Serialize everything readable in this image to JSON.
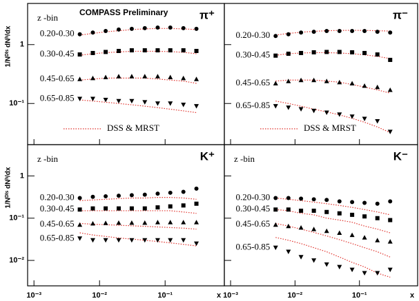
{
  "chart_data": [
    {
      "type": "scatter",
      "title": "π⁺",
      "annotation": "COMPASS Preliminary",
      "bin_label": "z -bin",
      "ylabel": "1/Nᴰᴵˢ dNʰ/dx",
      "log_x": true,
      "log_y": true,
      "xlim": [
        0.0008,
        0.8
      ],
      "ylim": [
        0.02,
        5
      ],
      "yticks": [
        1,
        {
          "value": 0.1,
          "label": "10⁻¹"
        }
      ],
      "x": [
        0.005,
        0.0079,
        0.0124,
        0.0196,
        0.031,
        0.049,
        0.077,
        0.12,
        0.19,
        0.3
      ],
      "series": [
        {
          "name": "0.20-0.30",
          "marker": "circle",
          "color": "#000000",
          "values": [
            1.5,
            1.6,
            1.7,
            1.8,
            1.85,
            1.9,
            1.95,
            1.95,
            1.9,
            1.85
          ]
        },
        {
          "name": "0.30-0.45",
          "marker": "square",
          "color": "#000000",
          "values": [
            0.68,
            0.72,
            0.75,
            0.78,
            0.8,
            0.8,
            0.8,
            0.8,
            0.8,
            0.78
          ]
        },
        {
          "name": "0.45-0.65",
          "marker": "triangle",
          "color": "#000000",
          "values": [
            0.26,
            0.27,
            0.28,
            0.29,
            0.29,
            0.29,
            0.29,
            0.28,
            0.27,
            0.26
          ]
        },
        {
          "name": "0.65-0.85",
          "marker": "down-triangle",
          "color": "#000000",
          "values": [
            0.12,
            0.12,
            0.115,
            0.11,
            0.11,
            0.105,
            0.1,
            0.1,
            0.095,
            0.09
          ]
        }
      ],
      "curve_label": "DSS & MRST",
      "curves": [
        {
          "color": "#e0302a",
          "values": [
            1.45,
            1.55,
            1.65,
            1.72,
            1.8,
            1.85,
            1.88,
            1.88,
            1.85,
            1.8
          ]
        },
        {
          "color": "#e0302a",
          "values": [
            0.66,
            0.7,
            0.73,
            0.75,
            0.77,
            0.77,
            0.77,
            0.76,
            0.74,
            0.7
          ]
        },
        {
          "color": "#e0302a",
          "values": [
            0.25,
            0.26,
            0.27,
            0.27,
            0.27,
            0.27,
            0.26,
            0.25,
            0.24,
            0.22
          ]
        },
        {
          "color": "#e0302a",
          "values": [
            0.115,
            0.11,
            0.105,
            0.1,
            0.095,
            0.09,
            0.085,
            0.08,
            0.075,
            0.07
          ]
        }
      ]
    },
    {
      "type": "scatter",
      "title": "π⁻",
      "log_x": true,
      "log_y": true,
      "xlim": [
        0.0008,
        0.8
      ],
      "ylim": [
        0.02,
        5
      ],
      "x": [
        0.005,
        0.0079,
        0.0124,
        0.0196,
        0.031,
        0.049,
        0.077,
        0.12,
        0.19,
        0.3
      ],
      "series": [
        {
          "name": "0.20-0.30",
          "marker": "circle",
          "color": "#000000",
          "values": [
            1.4,
            1.5,
            1.6,
            1.65,
            1.7,
            1.7,
            1.7,
            1.7,
            1.65,
            1.6
          ]
        },
        {
          "name": "0.30-0.45",
          "marker": "square",
          "color": "#000000",
          "values": [
            0.65,
            0.7,
            0.72,
            0.74,
            0.75,
            0.75,
            0.74,
            0.72,
            0.68,
            0.55
          ]
        },
        {
          "name": "0.45-0.65",
          "marker": "triangle",
          "color": "#000000",
          "values": [
            0.22,
            0.24,
            0.25,
            0.25,
            0.24,
            0.23,
            0.22,
            0.2,
            0.19,
            0.17
          ]
        },
        {
          "name": "0.65-0.85",
          "marker": "down-triangle",
          "color": "#000000",
          "values": [
            0.09,
            0.085,
            0.08,
            0.075,
            0.07,
            0.065,
            0.06,
            0.055,
            0.05,
            0.033
          ]
        }
      ],
      "curve_label": "DSS & MRST",
      "curves": [
        {
          "color": "#e0302a",
          "values": [
            1.45,
            1.55,
            1.62,
            1.68,
            1.72,
            1.74,
            1.75,
            1.74,
            1.72,
            1.7
          ]
        },
        {
          "color": "#e0302a",
          "values": [
            0.66,
            0.7,
            0.72,
            0.73,
            0.73,
            0.72,
            0.7,
            0.67,
            0.63,
            0.58
          ]
        },
        {
          "color": "#e0302a",
          "values": [
            0.24,
            0.25,
            0.25,
            0.25,
            0.24,
            0.23,
            0.21,
            0.19,
            0.17,
            0.15
          ]
        },
        {
          "color": "#e0302a",
          "values": [
            0.11,
            0.1,
            0.09,
            0.08,
            0.072,
            0.064,
            0.056,
            0.048,
            0.04,
            0.032
          ]
        }
      ]
    },
    {
      "type": "scatter",
      "title": "K⁺",
      "bin_label": "z -bin",
      "ylabel": "1/Nᴰᴵˢ dNʰ/dx",
      "xlabel": "x",
      "log_x": true,
      "log_y": true,
      "xlim": [
        0.0008,
        0.8
      ],
      "ylim": [
        0.0025,
        5.5
      ],
      "xticks": [
        {
          "value": 0.001,
          "label": "10⁻³"
        },
        {
          "value": 0.01,
          "label": "10⁻²"
        },
        {
          "value": 0.1,
          "label": "10⁻¹"
        }
      ],
      "yticks": [
        1,
        {
          "value": 0.1,
          "label": "10⁻¹"
        },
        {
          "value": 0.01,
          "label": "10⁻²"
        }
      ],
      "x": [
        0.005,
        0.0079,
        0.0124,
        0.0196,
        0.031,
        0.049,
        0.077,
        0.12,
        0.19,
        0.3
      ],
      "series": [
        {
          "name": "0.20-0.30",
          "marker": "circle",
          "color": "#000000",
          "values": [
            0.3,
            0.32,
            0.33,
            0.34,
            0.35,
            0.36,
            0.38,
            0.4,
            0.42,
            0.5
          ]
        },
        {
          "name": "0.30-0.45",
          "marker": "square",
          "color": "#000000",
          "values": [
            0.16,
            0.17,
            0.17,
            0.17,
            0.17,
            0.17,
            0.18,
            0.19,
            0.2,
            0.22
          ]
        },
        {
          "name": "0.45-0.65",
          "marker": "triangle",
          "color": "#000000",
          "values": [
            0.07,
            0.075,
            0.077,
            0.078,
            0.078,
            0.078,
            0.08,
            0.08,
            0.08,
            0.08
          ]
        },
        {
          "name": "0.65-0.85",
          "marker": "down-triangle",
          "color": "#000000",
          "values": [
            0.033,
            0.03,
            0.03,
            0.03,
            0.03,
            0.03,
            0.03,
            0.03,
            0.03,
            0.025
          ]
        }
      ],
      "curves": [
        {
          "color": "#e0302a",
          "values": [
            0.26,
            0.27,
            0.28,
            0.29,
            0.3,
            0.3,
            0.31,
            0.31,
            0.3,
            0.28
          ]
        },
        {
          "color": "#e0302a",
          "values": [
            0.15,
            0.15,
            0.15,
            0.15,
            0.15,
            0.15,
            0.15,
            0.15,
            0.14,
            0.13
          ]
        },
        {
          "color": "#e0302a",
          "values": [
            0.075,
            0.072,
            0.07,
            0.068,
            0.066,
            0.064,
            0.062,
            0.06,
            0.058,
            0.055
          ]
        },
        {
          "color": "#e0302a",
          "values": [
            0.045,
            0.04,
            0.037,
            0.034,
            0.032,
            0.03,
            0.028,
            0.026,
            0.024,
            0.022
          ]
        }
      ]
    },
    {
      "type": "scatter",
      "title": "K⁻",
      "bin_label": "z -bin",
      "xlabel": "x",
      "log_x": true,
      "log_y": true,
      "xlim": [
        0.0008,
        0.8
      ],
      "ylim": [
        0.0025,
        5.5
      ],
      "xticks": [
        {
          "value": 0.001,
          "label": "10⁻³"
        },
        {
          "value": 0.01,
          "label": "10⁻²"
        },
        {
          "value": 0.1,
          "label": "10⁻¹"
        }
      ],
      "x": [
        0.005,
        0.0079,
        0.0124,
        0.0196,
        0.031,
        0.049,
        0.077,
        0.12,
        0.19,
        0.3
      ],
      "series": [
        {
          "name": "0.20-0.30",
          "marker": "circle",
          "color": "#000000",
          "values": [
            0.3,
            0.3,
            0.29,
            0.28,
            0.27,
            0.25,
            0.24,
            0.23,
            0.22,
            0.25
          ]
        },
        {
          "name": "0.30-0.45",
          "marker": "square",
          "color": "#000000",
          "values": [
            0.16,
            0.16,
            0.15,
            0.15,
            0.14,
            0.13,
            0.12,
            0.11,
            0.1,
            0.09
          ]
        },
        {
          "name": "0.45-0.65",
          "marker": "triangle",
          "color": "#000000",
          "values": [
            0.07,
            0.065,
            0.06,
            0.055,
            0.05,
            0.045,
            0.04,
            0.035,
            0.03,
            0.028
          ]
        },
        {
          "name": "0.65-0.85",
          "marker": "down-triangle",
          "color": "#000000",
          "values": [
            0.02,
            0.016,
            0.012,
            0.01,
            0.008,
            0.007,
            0.006,
            0.005,
            0.005,
            0.006
          ]
        }
      ],
      "curves": [
        {
          "color": "#e0302a",
          "values": [
            0.3,
            0.28,
            0.26,
            0.24,
            0.22,
            0.2,
            0.18,
            0.16,
            0.14,
            0.12
          ]
        },
        {
          "color": "#e0302a",
          "values": [
            0.16,
            0.15,
            0.13,
            0.12,
            0.1,
            0.09,
            0.08,
            0.065,
            0.055,
            0.045
          ]
        },
        {
          "color": "#e0302a",
          "values": [
            0.075,
            0.065,
            0.055,
            0.046,
            0.038,
            0.031,
            0.025,
            0.02,
            0.016,
            0.012
          ]
        },
        {
          "color": "#e0302a",
          "values": [
            0.035,
            0.03,
            0.025,
            0.02,
            0.016,
            0.012,
            0.009,
            0.007,
            0.005,
            0.004
          ]
        }
      ]
    }
  ]
}
